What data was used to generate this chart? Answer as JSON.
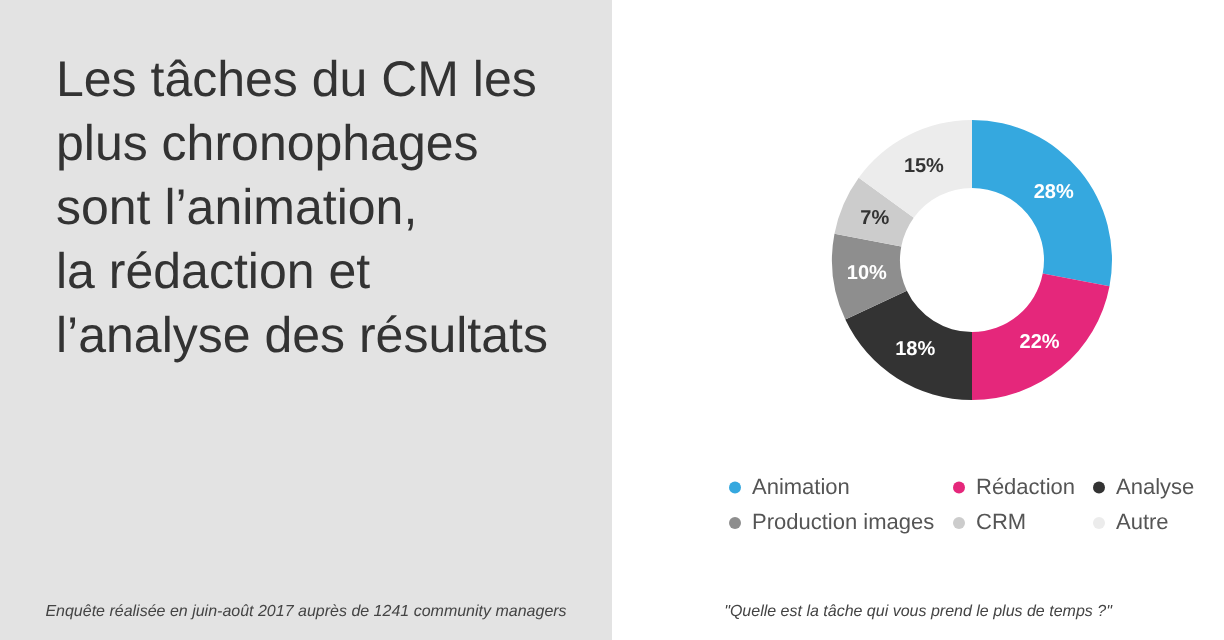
{
  "chart_data": {
    "type": "donut",
    "title": "Les tâches du CM les\nplus chronophages\nsont l’animation,\nla rédaction et\nl’analyse des résultats",
    "categories": [
      "Animation",
      "Rédaction",
      "Analyse",
      "Production images",
      "CRM",
      "Autre"
    ],
    "values": [
      28,
      22,
      18,
      10,
      7,
      15
    ],
    "value_labels": [
      "28%",
      "22%",
      "18%",
      "10%",
      "7%",
      "15%"
    ],
    "colors": [
      "#35a8df",
      "#e5277b",
      "#333333",
      "#8e8e8e",
      "#cccccc",
      "#ececec"
    ],
    "legend": "bottom",
    "annotations": [
      "Enquête réalisée en juin-août 2017 auprès de 1241 community managers",
      "\"Quelle est la tâche qui vous prend le plus de temps ?\""
    ]
  }
}
